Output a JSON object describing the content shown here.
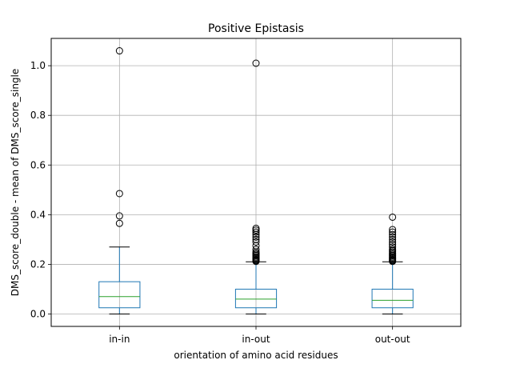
{
  "chart_data": {
    "type": "box",
    "title": "Positive Epistasis",
    "xlabel": "orientation of amino acid residues",
    "ylabel": "DMS_score_double - mean of DMS_score_single",
    "ylim": [
      -0.05,
      1.11
    ],
    "yticks": [
      0.0,
      0.2,
      0.4,
      0.6,
      0.8,
      1.0
    ],
    "ytick_labels": [
      "0.0",
      "0.2",
      "0.4",
      "0.6",
      "0.8",
      "1.0"
    ],
    "grid": true,
    "colors": {
      "box": "#1f77b4",
      "median": "#2ca02c",
      "whisker": "#1f77b4",
      "cap": "#000000",
      "grid": "#b0b0b0",
      "flier": "#000000"
    },
    "categories": [
      "in-in",
      "in-out",
      "out-out"
    ],
    "boxes": [
      {
        "name": "in-in",
        "whisker_low": 0.0,
        "q1": 0.025,
        "median": 0.07,
        "q3": 0.13,
        "whisker_high": 0.27,
        "fliers": [
          0.365,
          0.395,
          0.485,
          1.06
        ]
      },
      {
        "name": "in-out",
        "whisker_low": 0.0,
        "q1": 0.025,
        "median": 0.06,
        "q3": 0.1,
        "whisker_high": 0.21,
        "fliers": [
          0.212,
          0.215,
          0.218,
          0.222,
          0.226,
          0.23,
          0.235,
          0.24,
          0.245,
          0.25,
          0.26,
          0.275,
          0.29,
          0.3,
          0.31,
          0.32,
          0.33,
          0.338,
          0.345,
          1.01
        ]
      },
      {
        "name": "out-out",
        "whisker_low": 0.0,
        "q1": 0.025,
        "median": 0.055,
        "q3": 0.1,
        "whisker_high": 0.21,
        "fliers": [
          0.212,
          0.215,
          0.218,
          0.222,
          0.226,
          0.23,
          0.235,
          0.24,
          0.245,
          0.25,
          0.255,
          0.26,
          0.27,
          0.28,
          0.29,
          0.3,
          0.31,
          0.32,
          0.33,
          0.34,
          0.39
        ]
      }
    ]
  }
}
